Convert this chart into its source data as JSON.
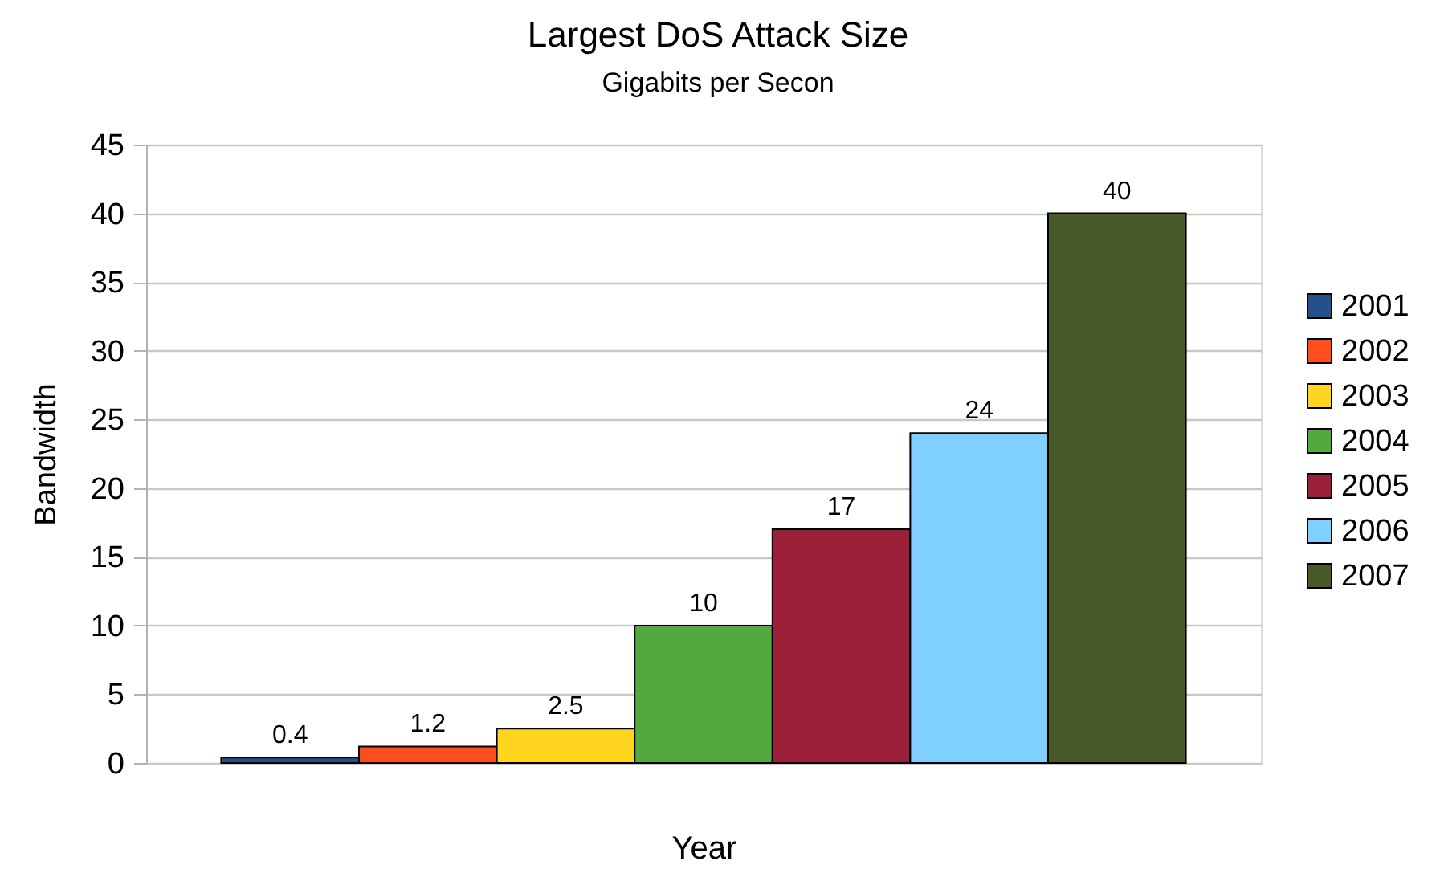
{
  "chart_data": {
    "type": "bar",
    "title": "Largest DoS Attack Size",
    "subtitle": "Gigabits per Secon",
    "xlabel": "Year",
    "ylabel": "Bandwidth",
    "categories": [
      null
    ],
    "series": [
      {
        "name": "2001",
        "color": "#24508c",
        "values": [
          0.4
        ]
      },
      {
        "name": "2002",
        "color": "#ff4d1f",
        "values": [
          1.2
        ]
      },
      {
        "name": "2003",
        "color": "#ffd520",
        "values": [
          2.5
        ]
      },
      {
        "name": "2004",
        "color": "#52aa3f",
        "values": [
          10
        ]
      },
      {
        "name": "2005",
        "color": "#9b1f38",
        "values": [
          17
        ]
      },
      {
        "name": "2006",
        "color": "#7fd0ff",
        "values": [
          24
        ]
      },
      {
        "name": "2007",
        "color": "#485a28",
        "values": [
          40
        ]
      }
    ],
    "ylim": [
      0,
      45
    ],
    "yticks": [
      0,
      5,
      10,
      15,
      20,
      25,
      30,
      35,
      40,
      45
    ],
    "grid": "y",
    "legend": "right",
    "data_labels": true
  }
}
